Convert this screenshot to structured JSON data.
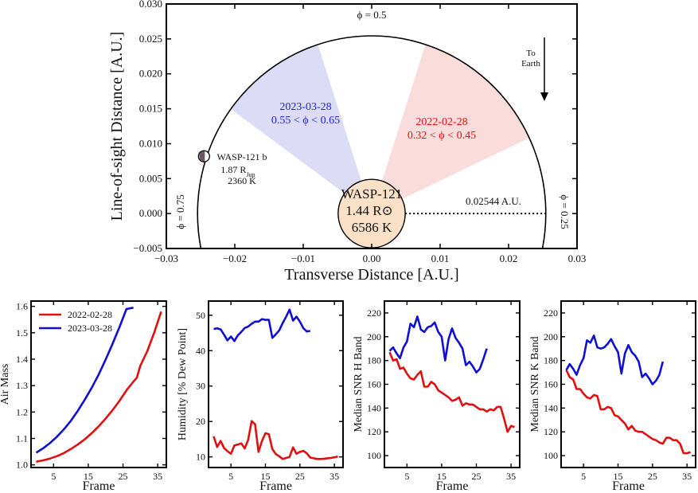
{
  "chart_data": [
    {
      "type": "diagram",
      "title": "",
      "xlabel": "Transverse Distance [A.U.]",
      "ylabel": "Line-of-sight Distance [A.U.]",
      "xlim": [
        -0.03,
        0.03
      ],
      "ylim": [
        -0.005,
        0.03
      ],
      "xticks": [
        "−0.03",
        "−0.02",
        "−0.01",
        "0.00",
        "0.01",
        "0.02",
        "0.03"
      ],
      "xtick_values": [
        -0.03,
        -0.02,
        -0.01,
        0.0,
        0.01,
        0.02,
        0.03
      ],
      "yticks": [
        "−0.005",
        "0.000",
        "0.005",
        "0.010",
        "0.015",
        "0.020",
        "0.025",
        "0.030"
      ],
      "ytick_values": [
        -0.005,
        0.0,
        0.005,
        0.01,
        0.015,
        0.02,
        0.025,
        0.03
      ],
      "orbit_radius_au": 0.02544,
      "orbit_label": "0.02544 A.U.",
      "star": {
        "name": "WASP-121",
        "radius_label": "1.44 R⊙",
        "temp_label": "6586 K",
        "radius_au": 0.0049,
        "color": "#fbe0c8"
      },
      "planet": {
        "name": "WASP-121 b",
        "radius_label": "1.87 R",
        "radius_sub": "Jup",
        "temp_label": "2360 K",
        "x_au": -0.0245,
        "y_au": 0.0082,
        "color": "#6e5566"
      },
      "phase_labels": {
        "top": "ϕ = 0.5",
        "left": "ϕ = 0.75",
        "right": "ϕ = 0.25"
      },
      "wedges": [
        {
          "date": "2023-03-28",
          "range": "0.55 < ϕ < 0.65",
          "phase_min": 0.55,
          "phase_max": 0.65,
          "color": "#2222dd",
          "fill": "#dcdcf6"
        },
        {
          "date": "2022-02-28",
          "range": "0.32 < ϕ < 0.45",
          "phase_min": 0.32,
          "phase_max": 0.45,
          "color": "#dd1111",
          "fill": "#fbdcdc"
        }
      ],
      "arrow_label": [
        "To",
        "Earth"
      ]
    },
    {
      "type": "line",
      "xlabel": "Frame",
      "ylabel": "Air Mass",
      "xlim": [
        -1.5,
        37.5
      ],
      "ylim": [
        0.99,
        1.62
      ],
      "xticks": [
        5,
        15,
        25,
        35
      ],
      "yticks": [
        1.0,
        1.1,
        1.2,
        1.3,
        1.4,
        1.5,
        1.6
      ],
      "ytick_labels": [
        "1.0",
        "1.1",
        "1.2",
        "1.3",
        "1.4",
        "1.5",
        "1.6"
      ],
      "legend": "top-left",
      "series": [
        {
          "name": "2022-02-28",
          "color": "#e01010",
          "x": [
            0,
            2,
            4,
            6,
            8,
            10,
            12,
            14,
            16,
            18,
            20,
            22,
            24,
            26,
            28,
            29,
            30,
            32,
            34,
            36
          ],
          "values": [
            1.012,
            1.017,
            1.024,
            1.033,
            1.045,
            1.06,
            1.077,
            1.097,
            1.12,
            1.146,
            1.175,
            1.207,
            1.243,
            1.282,
            1.315,
            1.33,
            1.375,
            1.43,
            1.5,
            1.58
          ]
        },
        {
          "name": "2023-03-28",
          "color": "#1010d0",
          "x": [
            0,
            2,
            4,
            6,
            8,
            10,
            12,
            14,
            16,
            18,
            20,
            22,
            24,
            26,
            28
          ],
          "values": [
            1.046,
            1.063,
            1.083,
            1.107,
            1.135,
            1.167,
            1.205,
            1.247,
            1.292,
            1.342,
            1.398,
            1.458,
            1.522,
            1.59,
            1.595
          ]
        }
      ]
    },
    {
      "type": "line",
      "xlabel": "Frame",
      "ylabel": "Humidity [% Dew Point]",
      "xlim": [
        -1.5,
        37.5
      ],
      "ylim": [
        7,
        54
      ],
      "xticks": [
        5,
        15,
        25,
        35
      ],
      "yticks": [
        10,
        20,
        30,
        40,
        50
      ],
      "series": [
        {
          "name": "2022-02-28",
          "color": "#e01010",
          "x": [
            0,
            1,
            2,
            3,
            4,
            5,
            6,
            7,
            8,
            9,
            10,
            11,
            12,
            13,
            14,
            15,
            16,
            17,
            18,
            19,
            20,
            21,
            22,
            23,
            24,
            25,
            26,
            27,
            28,
            29,
            30,
            31,
            32,
            33,
            34,
            35,
            36
          ],
          "values": [
            15.8,
            12.8,
            14.5,
            12.5,
            11.6,
            10.9,
            13.2,
            13.5,
            13.8,
            12.4,
            14.8,
            20.1,
            19.2,
            11.4,
            14.5,
            16.7,
            16.4,
            12.2,
            10.8,
            10.2,
            9.4,
            9.7,
            10.0,
            12.7,
            10.9,
            11.4,
            11.7,
            11.0,
            9.8,
            9.6,
            9.4,
            9.4,
            9.5,
            9.6,
            9.7,
            9.9,
            10.1
          ]
        },
        {
          "name": "2023-03-28",
          "color": "#1010d0",
          "x": [
            0,
            1,
            2,
            3,
            4,
            5,
            6,
            7,
            8,
            9,
            10,
            11,
            12,
            13,
            14,
            15,
            16,
            17,
            18,
            19,
            20,
            21,
            22,
            23,
            24,
            25,
            26,
            27,
            28
          ],
          "values": [
            46.1,
            46.3,
            46.0,
            44.5,
            42.9,
            44.0,
            42.7,
            44.3,
            45.3,
            46.4,
            46.8,
            47.6,
            48.2,
            48.2,
            48.9,
            48.7,
            48.7,
            43.6,
            44.6,
            45.7,
            47.8,
            49.6,
            51.6,
            48.5,
            49.6,
            48.2,
            46.3,
            45.4,
            45.6
          ]
        }
      ]
    },
    {
      "type": "line",
      "xlabel": "Frame",
      "ylabel": "Median SNR H Band",
      "xlim": [
        -1.5,
        37.5
      ],
      "ylim": [
        90,
        230
      ],
      "xticks": [
        5,
        15,
        25,
        35
      ],
      "yticks": [
        100,
        120,
        140,
        160,
        180,
        200,
        220
      ],
      "series": [
        {
          "name": "2022-02-28",
          "color": "#e01010",
          "x": [
            0,
            1,
            2,
            3,
            4,
            5,
            6,
            7,
            8,
            9,
            10,
            11,
            12,
            13,
            14,
            15,
            16,
            17,
            18,
            19,
            20,
            21,
            22,
            23,
            24,
            25,
            26,
            27,
            28,
            29,
            30,
            31,
            32,
            33,
            34,
            35,
            36
          ],
          "values": [
            187,
            180,
            181,
            173,
            174,
            169,
            165,
            164,
            168,
            171,
            158,
            158,
            162,
            160,
            155,
            153,
            151,
            149,
            146,
            147,
            149,
            142,
            144,
            143,
            143,
            141,
            139,
            139,
            137,
            139,
            138,
            141,
            141,
            131,
            120,
            125,
            124
          ]
        },
        {
          "name": "2023-03-28",
          "color": "#1010d0",
          "x": [
            0,
            1,
            2,
            3,
            4,
            5,
            6,
            7,
            8,
            9,
            10,
            11,
            12,
            13,
            14,
            15,
            16,
            17,
            18,
            19,
            20,
            21,
            22,
            23,
            24,
            25,
            26,
            27,
            28
          ],
          "values": [
            188,
            191,
            186,
            182,
            191,
            196,
            211,
            208,
            217,
            206,
            204,
            208,
            209,
            212,
            204,
            200,
            180,
            198,
            207,
            199,
            195,
            190,
            176,
            179,
            175,
            170,
            173,
            181,
            190
          ]
        }
      ]
    },
    {
      "type": "line",
      "xlabel": "Frame",
      "ylabel": "Median SNR K Band",
      "xlim": [
        -1.5,
        37.5
      ],
      "ylim": [
        90,
        230
      ],
      "xticks": [
        5,
        15,
        25,
        35
      ],
      "yticks": [
        100,
        120,
        140,
        160,
        180,
        200,
        220
      ],
      "series": [
        {
          "name": "2022-02-28",
          "color": "#e01010",
          "x": [
            0,
            1,
            2,
            3,
            4,
            5,
            6,
            7,
            8,
            9,
            10,
            11,
            12,
            13,
            14,
            15,
            16,
            17,
            18,
            19,
            20,
            21,
            22,
            23,
            24,
            25,
            26,
            27,
            28,
            29,
            30,
            31,
            32,
            33,
            34,
            35,
            36
          ],
          "values": [
            172,
            166,
            164,
            156,
            156,
            152,
            149,
            148,
            151,
            150,
            139,
            139,
            141,
            140,
            134,
            133,
            130,
            127,
            122,
            125,
            121,
            120,
            120,
            118,
            116,
            114,
            113,
            111,
            110,
            115,
            115,
            113,
            113,
            110,
            102,
            102,
            103
          ]
        },
        {
          "name": "2023-03-28",
          "color": "#1010d0",
          "x": [
            0,
            1,
            2,
            3,
            4,
            5,
            6,
            7,
            8,
            9,
            10,
            11,
            12,
            13,
            14,
            15,
            16,
            17,
            18,
            19,
            20,
            21,
            22,
            23,
            24,
            25,
            26,
            27,
            28
          ],
          "values": [
            172,
            177,
            173,
            168,
            176,
            182,
            197,
            195,
            201,
            191,
            190,
            191,
            194,
            198,
            192,
            187,
            169,
            186,
            193,
            187,
            184,
            179,
            166,
            169,
            165,
            160,
            163,
            168,
            179
          ]
        }
      ]
    }
  ]
}
